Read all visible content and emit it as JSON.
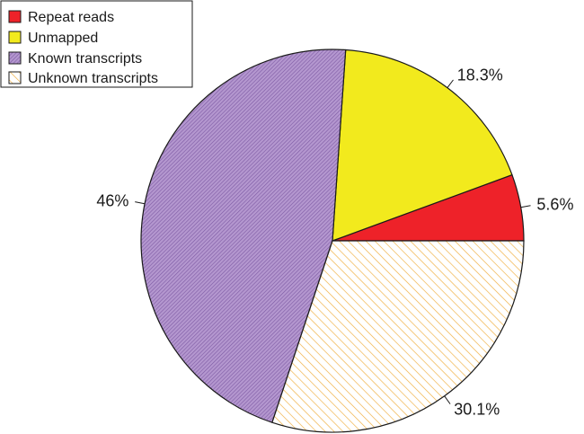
{
  "chart_data": {
    "type": "pie",
    "title": "",
    "legend_position": "top-left",
    "slices": [
      {
        "name": "Repeat reads",
        "value": 5.6,
        "label": "5.6%",
        "color": "#ee2229",
        "fill": "solid"
      },
      {
        "name": "Unmapped",
        "value": 18.3,
        "label": "18.3%",
        "color": "#f2ea1d",
        "fill": "solid"
      },
      {
        "name": "Known transcripts",
        "value": 46,
        "label": "46%",
        "color": "#a888c4",
        "fill": "dense-hatch"
      },
      {
        "name": "Unknown transcripts",
        "value": 30.1,
        "label": "30.1%",
        "color": "#f0ae3c",
        "fill": "hatch"
      }
    ]
  }
}
